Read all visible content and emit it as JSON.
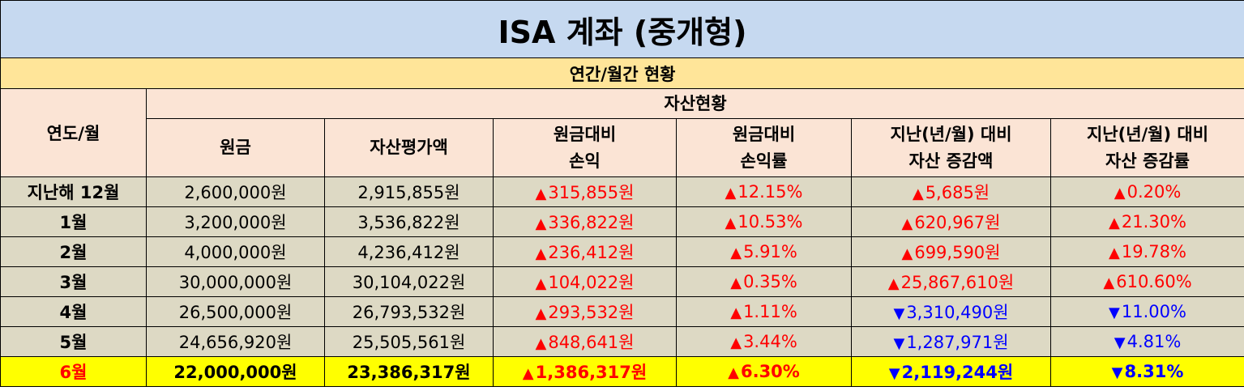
{
  "title": "ISA 계좌 (중개형)",
  "subtitle": "연간/월간 현황",
  "group_header": "자산현황",
  "columns": {
    "date": "연도/월",
    "principal": "원금",
    "asset_value": "자산평가액",
    "pnl_line1": "원금대비",
    "pnl_line2": "손익",
    "pnl_rate_line1": "원금대비",
    "pnl_rate_line2": "손익률",
    "change_line1": "지난(년/월) 대비",
    "change_line2": "자산 증감액",
    "change_rate_line1": "지난(년/월) 대비",
    "change_rate_line2": "자산 증감률"
  },
  "symbols": {
    "up": "▲",
    "down": "▼"
  },
  "colors": {
    "title_bg": "#c6d9f0",
    "subtitle_bg": "#ffe599",
    "header_bg": "#fbe4d5",
    "row_bg": "#ddd9c4",
    "highlight_bg": "#ffff00",
    "up": "#ff0000",
    "down": "#0000ff"
  },
  "rows": [
    {
      "label": "지난해 12월",
      "principal": "2,600,000원",
      "asset_value": "2,915,855원",
      "pnl": "315,855원",
      "pnl_dir": "up",
      "pnl_rate": "12.15%",
      "pnl_rate_dir": "up",
      "change": "5,685원",
      "change_dir": "up",
      "change_rate": "0.20%",
      "change_rate_dir": "up"
    },
    {
      "label": "1월",
      "principal": "3,200,000원",
      "asset_value": "3,536,822원",
      "pnl": "336,822원",
      "pnl_dir": "up",
      "pnl_rate": "10.53%",
      "pnl_rate_dir": "up",
      "change": "620,967원",
      "change_dir": "up",
      "change_rate": "21.30%",
      "change_rate_dir": "up"
    },
    {
      "label": "2월",
      "principal": "4,000,000원",
      "asset_value": "4,236,412원",
      "pnl": "236,412원",
      "pnl_dir": "up",
      "pnl_rate": "5.91%",
      "pnl_rate_dir": "up",
      "change": "699,590원",
      "change_dir": "up",
      "change_rate": "19.78%",
      "change_rate_dir": "up"
    },
    {
      "label": "3월",
      "principal": "30,000,000원",
      "asset_value": "30,104,022원",
      "pnl": "104,022원",
      "pnl_dir": "up",
      "pnl_rate": "0.35%",
      "pnl_rate_dir": "up",
      "change": "25,867,610원",
      "change_dir": "up",
      "change_rate": "610.60%",
      "change_rate_dir": "up"
    },
    {
      "label": "4월",
      "principal": "26,500,000원",
      "asset_value": "26,793,532원",
      "pnl": "293,532원",
      "pnl_dir": "up",
      "pnl_rate": "1.11%",
      "pnl_rate_dir": "up",
      "change": "3,310,490원",
      "change_dir": "down",
      "change_rate": "11.00%",
      "change_rate_dir": "down"
    },
    {
      "label": "5월",
      "principal": "24,656,920원",
      "asset_value": "25,505,561원",
      "pnl": "848,641원",
      "pnl_dir": "up",
      "pnl_rate": "3.44%",
      "pnl_rate_dir": "up",
      "change": "1,287,971원",
      "change_dir": "down",
      "change_rate": "4.81%",
      "change_rate_dir": "down"
    },
    {
      "label": "6월",
      "principal": "22,000,000원",
      "asset_value": "23,386,317원",
      "pnl": "1,386,317원",
      "pnl_dir": "up",
      "pnl_rate": "6.30%",
      "pnl_rate_dir": "up",
      "change": "2,119,244원",
      "change_dir": "down",
      "change_rate": "8.31%",
      "change_rate_dir": "down",
      "highlight": true
    }
  ]
}
